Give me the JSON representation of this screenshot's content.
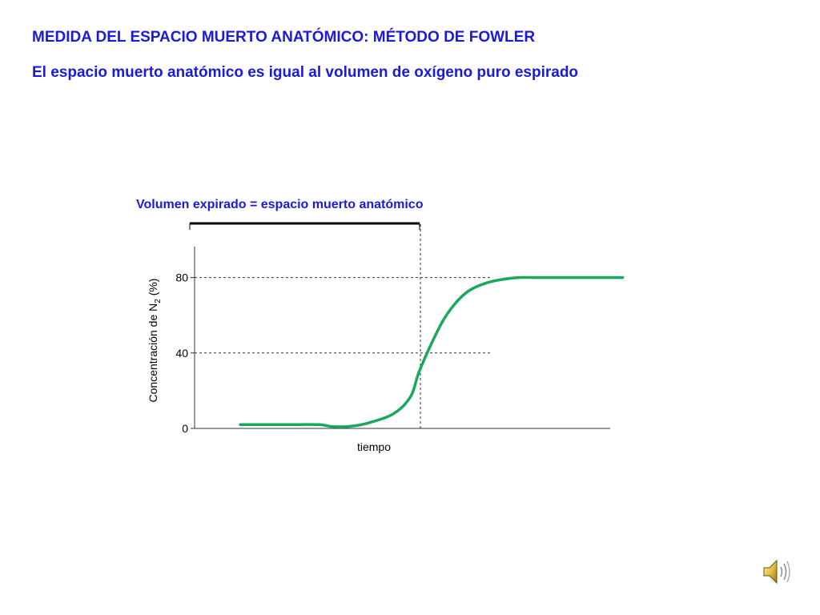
{
  "slide": {
    "title": "MEDIDA DEL ESPACIO MUERTO ANATÓMICO: MÉTODO DE FOWLER",
    "subtitle": "El espacio muerto anatómico es igual al volumen de oxígeno puro espirado"
  },
  "chart_data": {
    "type": "line",
    "annotation": "Volumen expirado  = espacio muerto anatómico",
    "ylabel": "Concentración de N",
    "ylabel_subscript": "2",
    "ylabel_suffix": " (%)",
    "xlabel": "tiempo",
    "ylim": [
      0,
      100
    ],
    "yticks": [
      0,
      40,
      80
    ],
    "x_range": [
      0,
      100
    ],
    "reference_lines": [
      {
        "axis": "y",
        "value": 80,
        "style": "dashed"
      },
      {
        "axis": "y",
        "value": 40,
        "style": "dashed"
      },
      {
        "axis": "x",
        "value": 54,
        "style": "dashed"
      }
    ],
    "series": [
      {
        "color": "#1aa85a",
        "x": [
          11,
          22,
          30,
          33,
          37,
          42,
          48,
          52,
          54,
          57,
          60,
          63,
          66,
          70,
          74,
          78,
          82,
          86,
          92,
          98,
          103
        ],
        "y": [
          2,
          2,
          2,
          1,
          1,
          3,
          8,
          17,
          30,
          45,
          58,
          67,
          73,
          77,
          79,
          80,
          80,
          80,
          80,
          80,
          80
        ]
      }
    ]
  },
  "icons": {
    "speaker": "speaker-icon"
  },
  "colors": {
    "title": "#1a1ad8",
    "annotation": "#1a1ad8",
    "curve": "#1aa85a"
  }
}
